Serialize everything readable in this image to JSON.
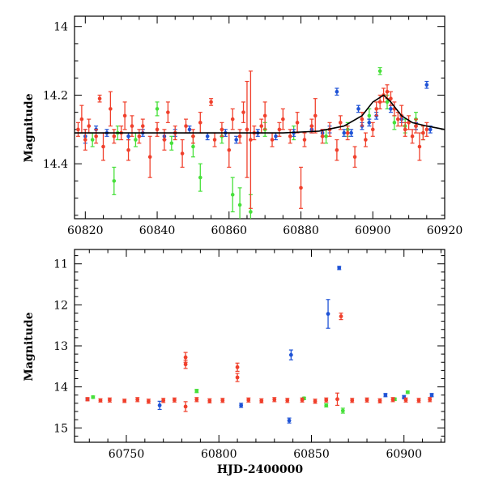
{
  "colors": {
    "red": "#f0402c",
    "green": "#47e03a",
    "blue": "#1f53d6",
    "model": "#000000"
  },
  "chart_data": [
    {
      "type": "scatter",
      "ylabel": "Magnitude",
      "xlabel": "",
      "xlim": [
        60817,
        60920
      ],
      "ylim": [
        14.56,
        13.97
      ],
      "y_inverted": true,
      "xticks": [
        60820,
        60840,
        60860,
        60880,
        60900,
        60920
      ],
      "yticks": [
        14,
        14.2,
        14.4
      ],
      "model_line": {
        "color": "black",
        "x": [
          60817,
          60825,
          60835,
          60845,
          60855,
          60865,
          60875,
          60885,
          60892,
          60897,
          60900,
          60903,
          60905,
          60908,
          60911,
          60915,
          60920
        ],
        "y": [
          14.31,
          14.31,
          14.31,
          14.31,
          14.31,
          14.31,
          14.31,
          14.305,
          14.29,
          14.26,
          14.22,
          14.2,
          14.22,
          14.26,
          14.28,
          14.29,
          14.3
        ]
      },
      "series": [
        {
          "color": "red",
          "points": [
            [
              60818,
              14.3,
              0.02
            ],
            [
              60819,
              14.27,
              0.04
            ],
            [
              60820,
              14.33,
              0.03
            ],
            [
              60821,
              14.29,
              0.02
            ],
            [
              60823,
              14.32,
              0.02
            ],
            [
              60824,
              14.21,
              0.01
            ],
            [
              60825,
              14.35,
              0.04
            ],
            [
              60827,
              14.24,
              0.05
            ],
            [
              60828,
              14.32,
              0.02
            ],
            [
              60830,
              14.31,
              0.02
            ],
            [
              60831,
              14.26,
              0.04
            ],
            [
              60832,
              14.36,
              0.03
            ],
            [
              60833,
              14.29,
              0.03
            ],
            [
              60835,
              14.32,
              0.02
            ],
            [
              60836,
              14.29,
              0.02
            ],
            [
              60838,
              14.38,
              0.06
            ],
            [
              60840,
              14.3,
              0.02
            ],
            [
              60842,
              14.33,
              0.03
            ],
            [
              60843,
              14.25,
              0.03
            ],
            [
              60845,
              14.31,
              0.02
            ],
            [
              60847,
              14.37,
              0.04
            ],
            [
              60848,
              14.29,
              0.02
            ],
            [
              60850,
              14.32,
              0.02
            ],
            [
              60852,
              14.28,
              0.03
            ],
            [
              60855,
              14.22,
              0.01
            ],
            [
              60856,
              14.33,
              0.02
            ],
            [
              60858,
              14.3,
              0.02
            ],
            [
              60860,
              14.36,
              0.05
            ],
            [
              60861,
              14.27,
              0.03
            ],
            [
              60863,
              14.32,
              0.02
            ],
            [
              60864,
              14.25,
              0.03
            ],
            [
              60865,
              14.3,
              0.14
            ],
            [
              60866,
              14.33,
              0.2
            ],
            [
              60867,
              14.31,
              0.02
            ],
            [
              60869,
              14.29,
              0.02
            ],
            [
              60870,
              14.26,
              0.04
            ],
            [
              60872,
              14.33,
              0.02
            ],
            [
              60874,
              14.3,
              0.02
            ],
            [
              60875,
              14.27,
              0.03
            ],
            [
              60877,
              14.32,
              0.02
            ],
            [
              60879,
              14.28,
              0.03
            ],
            [
              60880,
              14.47,
              0.06
            ],
            [
              60881,
              14.33,
              0.02
            ],
            [
              60883,
              14.29,
              0.02
            ],
            [
              60884,
              14.26,
              0.05
            ],
            [
              60886,
              14.32,
              0.02
            ],
            [
              60888,
              14.3,
              0.02
            ],
            [
              60890,
              14.36,
              0.03
            ],
            [
              60891,
              14.28,
              0.02
            ],
            [
              60893,
              14.31,
              0.02
            ],
            [
              60895,
              14.38,
              0.03
            ],
            [
              60897,
              14.27,
              0.02
            ],
            [
              60898,
              14.33,
              0.02
            ],
            [
              60900,
              14.3,
              0.02
            ],
            [
              60901,
              14.24,
              0.02
            ],
            [
              60902,
              14.22,
              0.02
            ],
            [
              60903,
              14.2,
              0.02
            ],
            [
              60904,
              14.19,
              0.02
            ],
            [
              60905,
              14.21,
              0.02
            ],
            [
              60906,
              14.24,
              0.02
            ],
            [
              60907,
              14.27,
              0.02
            ],
            [
              60908,
              14.26,
              0.03
            ],
            [
              60909,
              14.3,
              0.02
            ],
            [
              60910,
              14.28,
              0.02
            ],
            [
              60911,
              14.32,
              0.02
            ],
            [
              60912,
              14.29,
              0.02
            ],
            [
              60913,
              14.35,
              0.04
            ],
            [
              60914,
              14.31,
              0.02
            ],
            [
              60915,
              14.3,
              0.02
            ]
          ]
        },
        {
          "color": "green",
          "points": [
            [
              60822,
              14.33,
              0.02
            ],
            [
              60828,
              14.45,
              0.04
            ],
            [
              60829,
              14.31,
              0.02
            ],
            [
              60834,
              14.33,
              0.02
            ],
            [
              60840,
              14.24,
              0.02
            ],
            [
              60844,
              14.34,
              0.02
            ],
            [
              60850,
              14.35,
              0.03
            ],
            [
              60852,
              14.44,
              0.04
            ],
            [
              60858,
              14.32,
              0.02
            ],
            [
              60861,
              14.49,
              0.05
            ],
            [
              60863,
              14.52,
              0.05
            ],
            [
              60866,
              14.54,
              0.05
            ],
            [
              60870,
              14.3,
              0.02
            ],
            [
              60878,
              14.31,
              0.02
            ],
            [
              60887,
              14.32,
              0.02
            ],
            [
              60893,
              14.3,
              0.02
            ],
            [
              60899,
              14.26,
              0.02
            ],
            [
              60902,
              14.13,
              0.01
            ],
            [
              60904,
              14.22,
              0.02
            ],
            [
              60906,
              14.28,
              0.02
            ],
            [
              60909,
              14.29,
              0.02
            ],
            [
              60912,
              14.27,
              0.02
            ],
            [
              60914,
              14.31,
              0.02
            ]
          ]
        },
        {
          "color": "blue",
          "points": [
            [
              60820,
              14.32,
              0.02
            ],
            [
              60823,
              14.3,
              0.01
            ],
            [
              60826,
              14.31,
              0.01
            ],
            [
              60832,
              14.32,
              0.01
            ],
            [
              60836,
              14.31,
              0.01
            ],
            [
              60842,
              14.32,
              0.01
            ],
            [
              60845,
              14.31,
              0.01
            ],
            [
              60849,
              14.3,
              0.01
            ],
            [
              60854,
              14.32,
              0.01
            ],
            [
              60859,
              14.31,
              0.01
            ],
            [
              60862,
              14.33,
              0.01
            ],
            [
              60868,
              14.31,
              0.01
            ],
            [
              60873,
              14.32,
              0.01
            ],
            [
              60878,
              14.31,
              0.01
            ],
            [
              60883,
              14.3,
              0.01
            ],
            [
              60886,
              14.31,
              0.01
            ],
            [
              60888,
              14.3,
              0.01
            ],
            [
              60890,
              14.19,
              0.01
            ],
            [
              60892,
              14.31,
              0.01
            ],
            [
              60894,
              14.31,
              0.01
            ],
            [
              60896,
              14.24,
              0.01
            ],
            [
              60897,
              14.29,
              0.01
            ],
            [
              60899,
              14.28,
              0.01
            ],
            [
              60901,
              14.26,
              0.01
            ],
            [
              60905,
              14.24,
              0.01
            ],
            [
              60908,
              14.27,
              0.01
            ],
            [
              60912,
              14.29,
              0.01
            ],
            [
              60915,
              14.17,
              0.01
            ],
            [
              60916,
              14.3,
              0.01
            ]
          ]
        }
      ]
    },
    {
      "type": "scatter",
      "ylabel": "Magnitude",
      "xlabel": "HJD-2400000",
      "xlim": [
        60722,
        60922
      ],
      "ylim": [
        15.35,
        10.65
      ],
      "y_inverted": true,
      "xticks": [
        60750,
        60800,
        60850,
        60900
      ],
      "yticks": [
        11,
        12,
        13,
        14,
        15
      ],
      "series": [
        {
          "color": "red",
          "points": [
            [
              60729,
              14.3,
              0.04
            ],
            [
              60736,
              14.33,
              0.04
            ],
            [
              60741,
              14.32,
              0.05
            ],
            [
              60749,
              14.34,
              0.04
            ],
            [
              60756,
              14.31,
              0.05
            ],
            [
              60762,
              14.35,
              0.05
            ],
            [
              60770,
              14.33,
              0.05
            ],
            [
              60776,
              14.32,
              0.05
            ],
            [
              60782,
              13.28,
              0.12
            ],
            [
              60782,
              13.45,
              0.1
            ],
            [
              60782,
              14.48,
              0.12
            ],
            [
              60788,
              14.31,
              0.05
            ],
            [
              60795,
              14.34,
              0.05
            ],
            [
              60802,
              14.33,
              0.05
            ],
            [
              60810,
              13.52,
              0.1
            ],
            [
              60810,
              13.77,
              0.1
            ],
            [
              60816,
              14.32,
              0.05
            ],
            [
              60823,
              14.34,
              0.05
            ],
            [
              60830,
              14.31,
              0.05
            ],
            [
              60837,
              14.33,
              0.05
            ],
            [
              60845,
              14.32,
              0.05
            ],
            [
              60852,
              14.35,
              0.05
            ],
            [
              60858,
              14.32,
              0.05
            ],
            [
              60864,
              14.3,
              0.15
            ],
            [
              60866,
              12.28,
              0.08
            ],
            [
              60872,
              14.33,
              0.05
            ],
            [
              60880,
              14.32,
              0.05
            ],
            [
              60887,
              14.34,
              0.05
            ],
            [
              60894,
              14.31,
              0.05
            ],
            [
              60901,
              14.32,
              0.05
            ],
            [
              60908,
              14.33,
              0.05
            ],
            [
              60914,
              14.31,
              0.05
            ]
          ]
        },
        {
          "color": "green",
          "points": [
            [
              60732,
              14.25,
              0.03
            ],
            [
              60788,
              14.1,
              0.04
            ],
            [
              60846,
              14.28,
              0.03
            ],
            [
              60858,
              14.45,
              0.04
            ],
            [
              60867,
              14.58,
              0.06
            ],
            [
              60895,
              14.3,
              0.03
            ],
            [
              60902,
              14.13,
              0.03
            ]
          ]
        },
        {
          "color": "blue",
          "points": [
            [
              60729,
              14.3,
              0.03
            ],
            [
              60768,
              14.45,
              0.1
            ],
            [
              60812,
              14.45,
              0.05
            ],
            [
              60838,
              14.82,
              0.06
            ],
            [
              60839,
              13.22,
              0.12
            ],
            [
              60859,
              12.22,
              0.35
            ],
            [
              60865,
              11.1,
              0.04
            ],
            [
              60890,
              14.2,
              0.04
            ],
            [
              60900,
              14.25,
              0.04
            ],
            [
              60915,
              14.2,
              0.04
            ]
          ]
        }
      ]
    }
  ]
}
